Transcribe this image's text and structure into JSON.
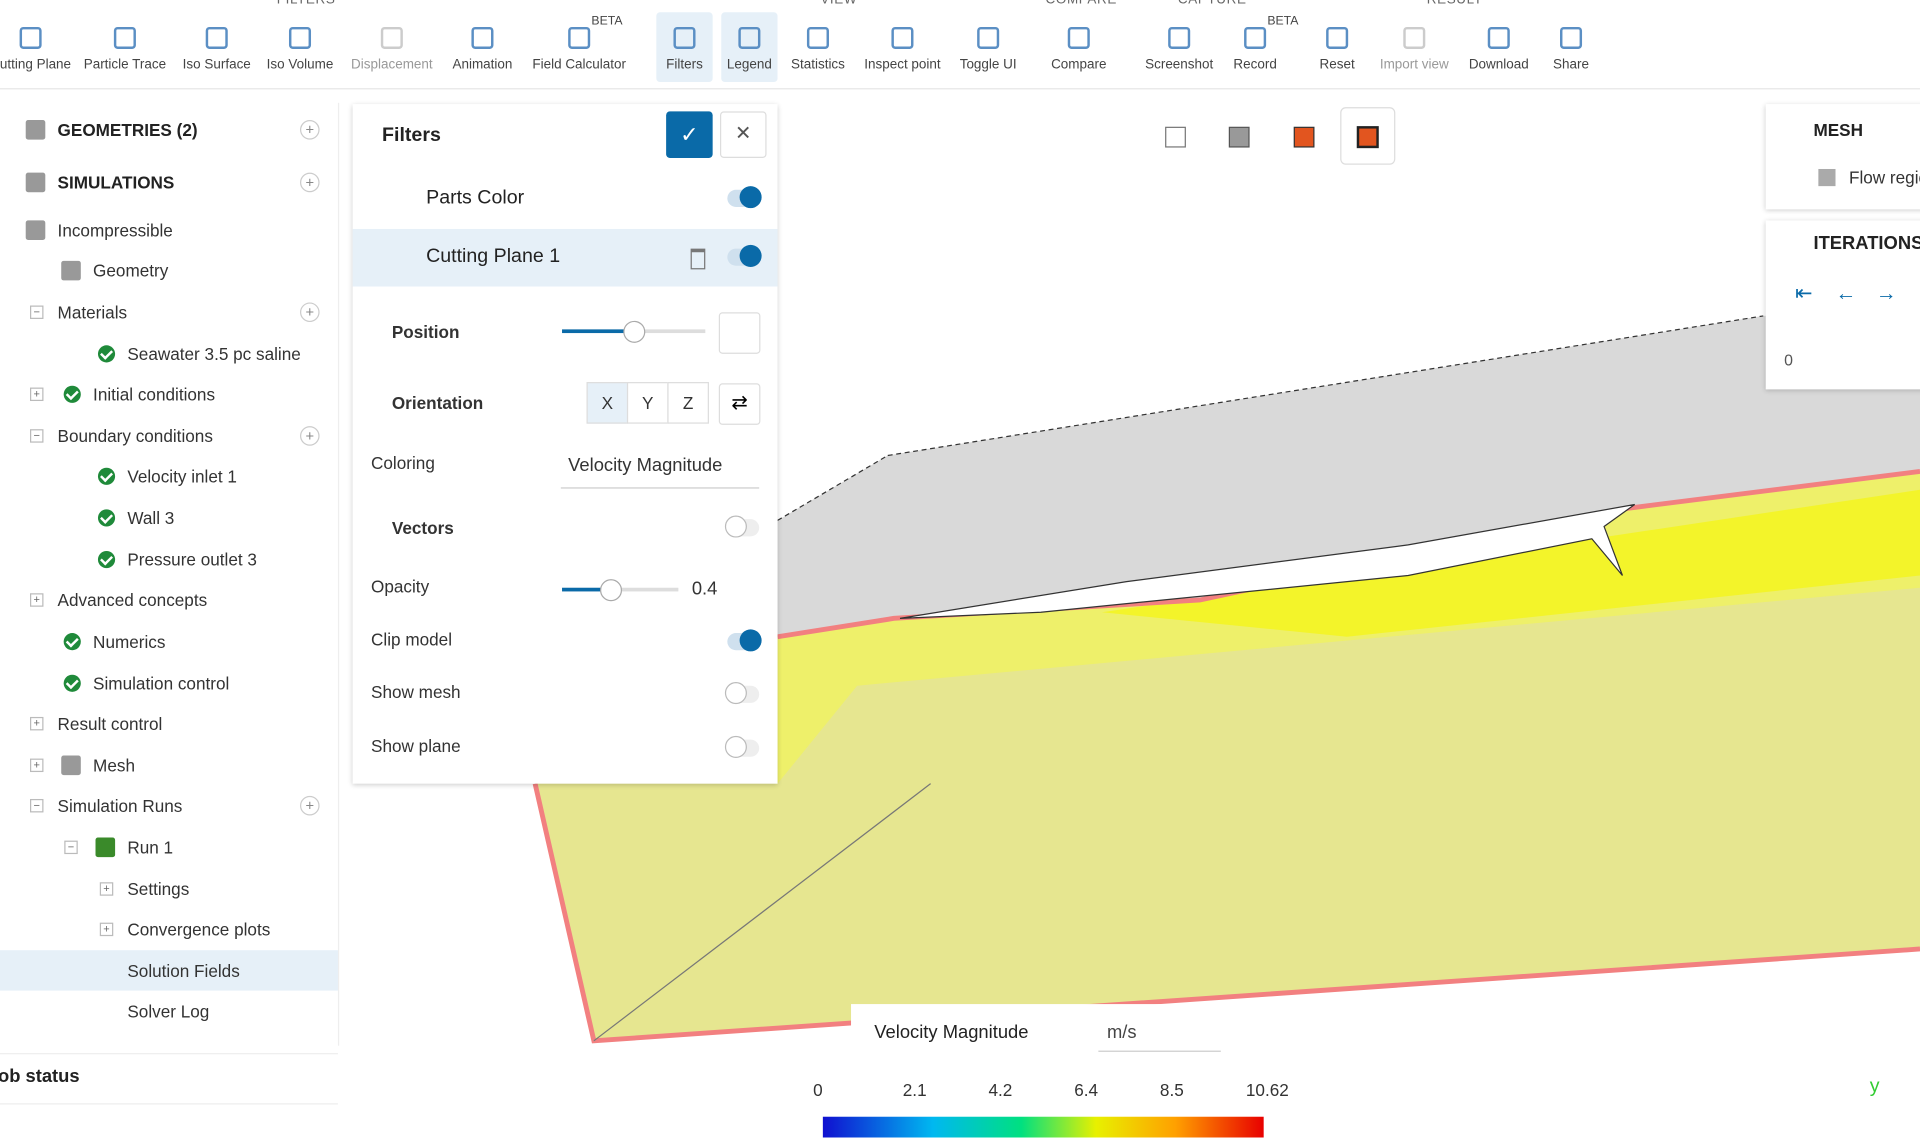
{
  "toolbar": {
    "groups": [
      "FILTERS",
      "VIEW",
      "COMPARE",
      "CAPTURE",
      "RESULT"
    ],
    "items": [
      {
        "label": "Cutting Plane"
      },
      {
        "label": "Particle Trace"
      },
      {
        "label": "Iso Surface"
      },
      {
        "label": "Iso Volume"
      },
      {
        "label": "Displacement"
      },
      {
        "label": "Animation"
      },
      {
        "label": "Field Calculator",
        "badge": "BETA"
      },
      {
        "label": "Filters"
      },
      {
        "label": "Legend"
      },
      {
        "label": "Statistics"
      },
      {
        "label": "Inspect point"
      },
      {
        "label": "Toggle UI"
      },
      {
        "label": "Compare"
      },
      {
        "label": "Screenshot"
      },
      {
        "label": "Record",
        "badge": "BETA"
      },
      {
        "label": "Reset"
      },
      {
        "label": "Import view"
      },
      {
        "label": "Download"
      },
      {
        "label": "Share"
      }
    ]
  },
  "tree": {
    "items": [
      "GEOMETRIES (2)",
      "SIMULATIONS",
      "Incompressible",
      "Geometry",
      "Materials",
      "Seawater 3.5 pc saline",
      "Initial conditions",
      "Boundary conditions",
      "Velocity inlet 1",
      "Wall 3",
      "Pressure outlet 3",
      "Advanced concepts",
      "Numerics",
      "Simulation control",
      "Result control",
      "Mesh",
      "Simulation Runs",
      "Run 1",
      "Settings",
      "Convergence plots",
      "Solution Fields",
      "Solver Log"
    ],
    "footer": "Job status"
  },
  "filters": {
    "title": "Filters",
    "parts_color": "Parts Color",
    "cutting_plane": "Cutting Plane 1",
    "position": "Position",
    "orientation": "Orientation",
    "axes": [
      "X",
      "Y",
      "Z"
    ],
    "coloring": "Coloring",
    "coloring_value": "Velocity Magnitude",
    "vectors": "Vectors",
    "opacity": "Opacity",
    "opacity_value": "0.4",
    "clip_model": "Clip model",
    "show_mesh": "Show mesh",
    "show_plane": "Show plane"
  },
  "legend": {
    "title": "Velocity Magnitude",
    "unit": "m/s",
    "ticks": [
      "0",
      "2.1",
      "4.2",
      "6.4",
      "8.5",
      "10.62"
    ]
  },
  "right_panel": {
    "mesh": "MESH",
    "mesh_item": "Flow region",
    "iterations": "ITERATIONS",
    "iteration_value": "0"
  },
  "axis_label": "y"
}
